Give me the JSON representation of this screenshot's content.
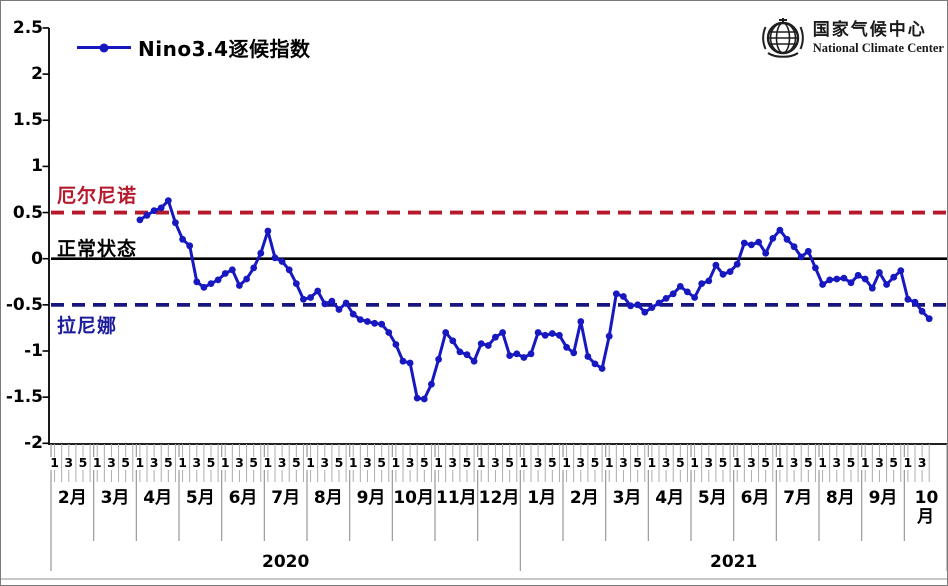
{
  "legend": {
    "label": "Nino3.4逐候指数"
  },
  "logo": {
    "cn": "国家气候中心",
    "en": "National Climate Center"
  },
  "annotations": {
    "el_nino": "厄尔尼诺",
    "normal": "正常状态",
    "la_nina": "拉尼娜"
  },
  "chart_data": {
    "type": "line",
    "title": "Nino3.4逐候指数",
    "y_axis": {
      "min": -2,
      "max": 2.5,
      "step": 0.5,
      "tick_labels": [
        "2.5",
        "2",
        "1.5",
        "1",
        "0.5",
        "0",
        "-0.5",
        "-1",
        "-1.5",
        "-2"
      ]
    },
    "x_axis": {
      "pentad_unit": "候",
      "years": [
        {
          "label": "2020",
          "months": [
            {
              "label": "2月",
              "pentads": 6,
              "pentad_labels": [
                "1",
                "3",
                "5"
              ]
            },
            {
              "label": "3月",
              "pentads": 6,
              "pentad_labels": [
                "1",
                "3",
                "5"
              ]
            },
            {
              "label": "4月",
              "pentads": 6,
              "pentad_labels": [
                "1",
                "3",
                "5"
              ]
            },
            {
              "label": "5月",
              "pentads": 6,
              "pentad_labels": [
                "1",
                "3",
                "5"
              ]
            },
            {
              "label": "6月",
              "pentads": 6,
              "pentad_labels": [
                "1",
                "3",
                "5"
              ]
            },
            {
              "label": "7月",
              "pentads": 6,
              "pentad_labels": [
                "1",
                "3",
                "5"
              ]
            },
            {
              "label": "8月",
              "pentads": 6,
              "pentad_labels": [
                "1",
                "3",
                "5"
              ]
            },
            {
              "label": "9月",
              "pentads": 6,
              "pentad_labels": [
                "1",
                "3",
                "5"
              ]
            },
            {
              "label": "10月",
              "pentads": 6,
              "pentad_labels": [
                "1",
                "3",
                "5"
              ]
            },
            {
              "label": "11月",
              "pentads": 6,
              "pentad_labels": [
                "1",
                "3",
                "5"
              ]
            },
            {
              "label": "12月",
              "pentads": 6,
              "pentad_labels": [
                "1",
                "3",
                "5"
              ]
            }
          ]
        },
        {
          "label": "2021",
          "months": [
            {
              "label": "1月",
              "pentads": 6,
              "pentad_labels": [
                "1",
                "3",
                "5"
              ]
            },
            {
              "label": "2月",
              "pentads": 6,
              "pentad_labels": [
                "1",
                "3",
                "5"
              ]
            },
            {
              "label": "3月",
              "pentads": 6,
              "pentad_labels": [
                "1",
                "3",
                "5"
              ]
            },
            {
              "label": "4月",
              "pentads": 6,
              "pentad_labels": [
                "1",
                "3",
                "5"
              ]
            },
            {
              "label": "5月",
              "pentads": 6,
              "pentad_labels": [
                "1",
                "3",
                "5"
              ]
            },
            {
              "label": "6月",
              "pentads": 6,
              "pentad_labels": [
                "1",
                "3",
                "5"
              ]
            },
            {
              "label": "7月",
              "pentads": 6,
              "pentad_labels": [
                "1",
                "3",
                "5"
              ]
            },
            {
              "label": "8月",
              "pentads": 6,
              "pentad_labels": [
                "1",
                "3",
                "5"
              ]
            },
            {
              "label": "9月",
              "pentads": 6,
              "pentad_labels": [
                "1",
                "3",
                "5"
              ]
            },
            {
              "label": "10月",
              "pentads": 4,
              "pentad_labels": [
                "1",
                "3"
              ]
            }
          ]
        }
      ]
    },
    "reference_lines": [
      {
        "value": 0.5,
        "label": "厄尔尼诺",
        "color": "#b5192b",
        "style": "dashed"
      },
      {
        "value": 0,
        "label": "正常状态",
        "color": "#000000",
        "style": "solid"
      },
      {
        "value": -0.5,
        "label": "拉尼娜",
        "color": "#16167e",
        "style": "dashed"
      }
    ],
    "series": [
      {
        "name": "Nino3.4逐候指数",
        "color": "#1718c0",
        "start_month_index": 2,
        "start_note": "series begins 2020年4月 第1候, ends 2021年10月 第4候",
        "values": [
          0.42,
          0.47,
          0.52,
          0.55,
          0.63,
          0.39,
          0.21,
          0.14,
          -0.25,
          -0.31,
          -0.27,
          -0.23,
          -0.16,
          -0.12,
          -0.29,
          -0.22,
          -0.1,
          0.06,
          0.3,
          0.01,
          -0.03,
          -0.12,
          -0.27,
          -0.44,
          -0.42,
          -0.35,
          -0.49,
          -0.46,
          -0.55,
          -0.48,
          -0.6,
          -0.66,
          -0.68,
          -0.7,
          -0.71,
          -0.8,
          -0.93,
          -1.11,
          -1.13,
          -1.51,
          -1.52,
          -1.36,
          -1.09,
          -0.8,
          -0.89,
          -1.01,
          -1.04,
          -1.11,
          -0.92,
          -0.94,
          -0.85,
          -0.8,
          -1.05,
          -1.03,
          -1.07,
          -1.03,
          -0.8,
          -0.83,
          -0.81,
          -0.83,
          -0.96,
          -1.02,
          -0.68,
          -1.06,
          -1.14,
          -1.19,
          -0.84,
          -0.38,
          -0.41,
          -0.51,
          -0.5,
          -0.58,
          -0.53,
          -0.48,
          -0.43,
          -0.38,
          -0.3,
          -0.36,
          -0.42,
          -0.27,
          -0.24,
          -0.07,
          -0.17,
          -0.14,
          -0.06,
          0.17,
          0.15,
          0.18,
          0.06,
          0.22,
          0.31,
          0.21,
          0.13,
          0.02,
          0.08,
          -0.1,
          -0.28,
          -0.23,
          -0.22,
          -0.21,
          -0.26,
          -0.18,
          -0.22,
          -0.32,
          -0.15,
          -0.28,
          -0.2,
          -0.13,
          -0.44,
          -0.47,
          -0.57,
          -0.65
        ]
      }
    ]
  }
}
